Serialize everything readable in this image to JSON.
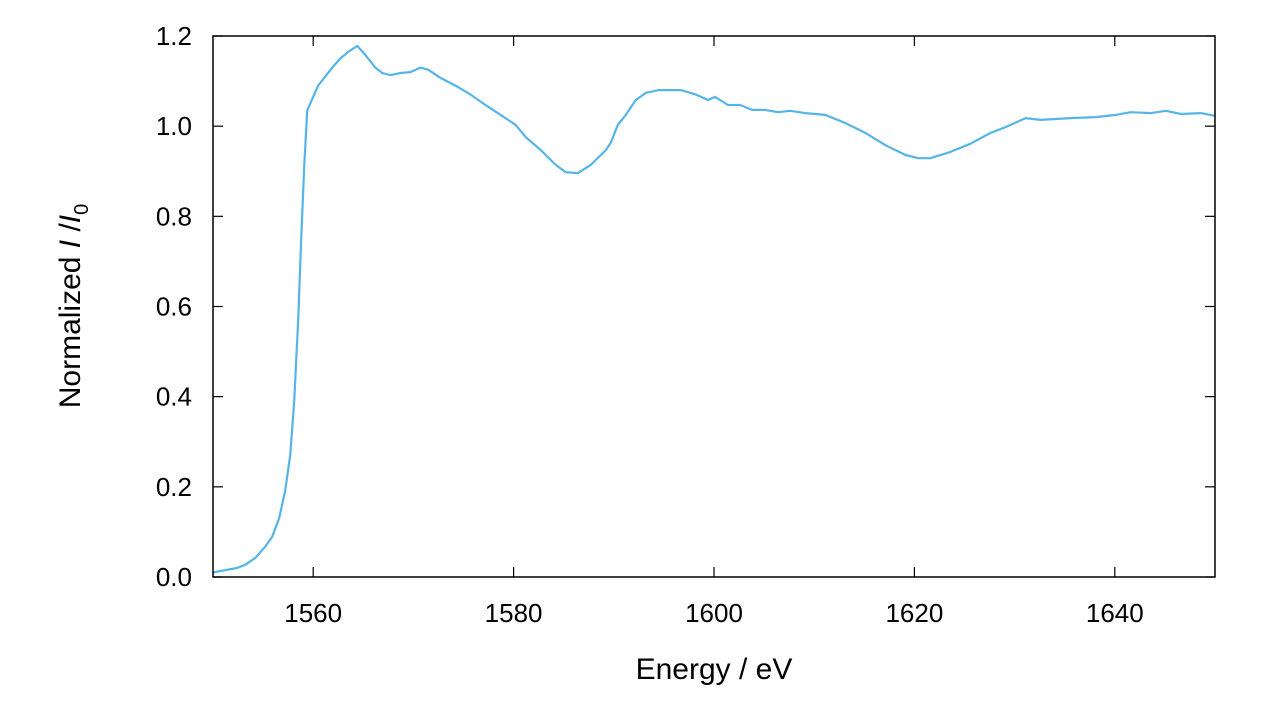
{
  "chart_data": {
    "type": "line",
    "title": "",
    "xlabel": "Energy / eV",
    "ylabel": {
      "prefix": "Normalized ",
      "var1": "I",
      "sep": " /",
      "var2": "I",
      "sub": "0"
    },
    "xlim": [
      1550,
      1650
    ],
    "ylim": [
      0.0,
      1.2
    ],
    "xticks": [
      1560,
      1580,
      1600,
      1620,
      1640
    ],
    "xtick_labels": [
      "1560",
      "1580",
      "1600",
      "1620",
      "1640"
    ],
    "yticks": [
      0.0,
      0.2,
      0.4,
      0.6,
      0.8,
      1.0,
      1.2
    ],
    "ytick_labels": [
      "0.0",
      "0.2",
      "0.4",
      "0.6",
      "0.8",
      "1.0",
      "1.2"
    ],
    "grid": false,
    "line_color": "#56b4e9",
    "series": [
      {
        "x": [
          1550,
          1550.7,
          1552.4,
          1553.2,
          1554.2,
          1555.2,
          1555.9,
          1556.6,
          1557.2,
          1557.7,
          1558.1,
          1558.5,
          1558.8,
          1559.1,
          1559.4,
          1559.9,
          1560.5,
          1561.2,
          1561.9,
          1562.7,
          1563.5,
          1564.4,
          1565.2,
          1566.2,
          1566.9,
          1567.7,
          1568.7,
          1569.7,
          1570.7,
          1571.5,
          1572.7,
          1574.2,
          1575.7,
          1577.2,
          1578.7,
          1580.2,
          1581.2,
          1582.7,
          1584.2,
          1585.2,
          1586.4,
          1587.7,
          1589.2,
          1589.7,
          1590.4,
          1591.2,
          1592.2,
          1593.2,
          1594.5,
          1596.7,
          1598.2,
          1599.4,
          1600.1,
          1601.4,
          1602.6,
          1603.8,
          1605.1,
          1606.4,
          1607.6,
          1609.1,
          1611.1,
          1613.1,
          1615.1,
          1617.1,
          1619.1,
          1620.4,
          1621.6,
          1623.6,
          1625.6,
          1627.6,
          1629.1,
          1631.1,
          1632.6,
          1634.1,
          1635.6,
          1638.1,
          1640.1,
          1641.6,
          1643.6,
          1645.1,
          1646.6,
          1648.6,
          1650
        ],
        "y": [
          0.01,
          0.013,
          0.02,
          0.027,
          0.042,
          0.067,
          0.089,
          0.13,
          0.19,
          0.27,
          0.39,
          0.57,
          0.75,
          0.91,
          1.035,
          1.06,
          1.09,
          1.11,
          1.13,
          1.15,
          1.165,
          1.178,
          1.158,
          1.13,
          1.118,
          1.113,
          1.118,
          1.12,
          1.13,
          1.125,
          1.107,
          1.09,
          1.07,
          1.047,
          1.025,
          1.003,
          0.976,
          0.947,
          0.914,
          0.898,
          0.896,
          0.914,
          0.947,
          0.963,
          1.003,
          1.025,
          1.058,
          1.074,
          1.08,
          1.08,
          1.07,
          1.058,
          1.065,
          1.047,
          1.047,
          1.036,
          1.036,
          1.031,
          1.034,
          1.029,
          1.025,
          1.007,
          0.985,
          0.958,
          0.936,
          0.929,
          0.929,
          0.943,
          0.961,
          0.985,
          0.998,
          1.018,
          1.014,
          1.016,
          1.018,
          1.02,
          1.025,
          1.031,
          1.029,
          1.034,
          1.027,
          1.029,
          1.023
        ]
      }
    ]
  }
}
